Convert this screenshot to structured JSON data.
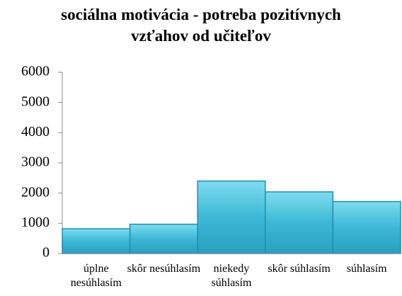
{
  "chart_data": {
    "type": "bar",
    "title": "sociálna motivácia - potreba pozitívnych vzťahov od učiteľov",
    "categories": [
      "úplne nesúhlasím",
      "skôr nesúhlasím",
      "niekedy súhlasím",
      "skôr súhlasím",
      "súhlasím"
    ],
    "values": [
      820,
      970,
      2400,
      2040,
      1720
    ],
    "color": "#3cb8d6",
    "ylim": [
      0,
      6000
    ],
    "yticks": [
      0,
      1000,
      2000,
      3000,
      4000,
      5000,
      6000
    ],
    "grid": false
  }
}
